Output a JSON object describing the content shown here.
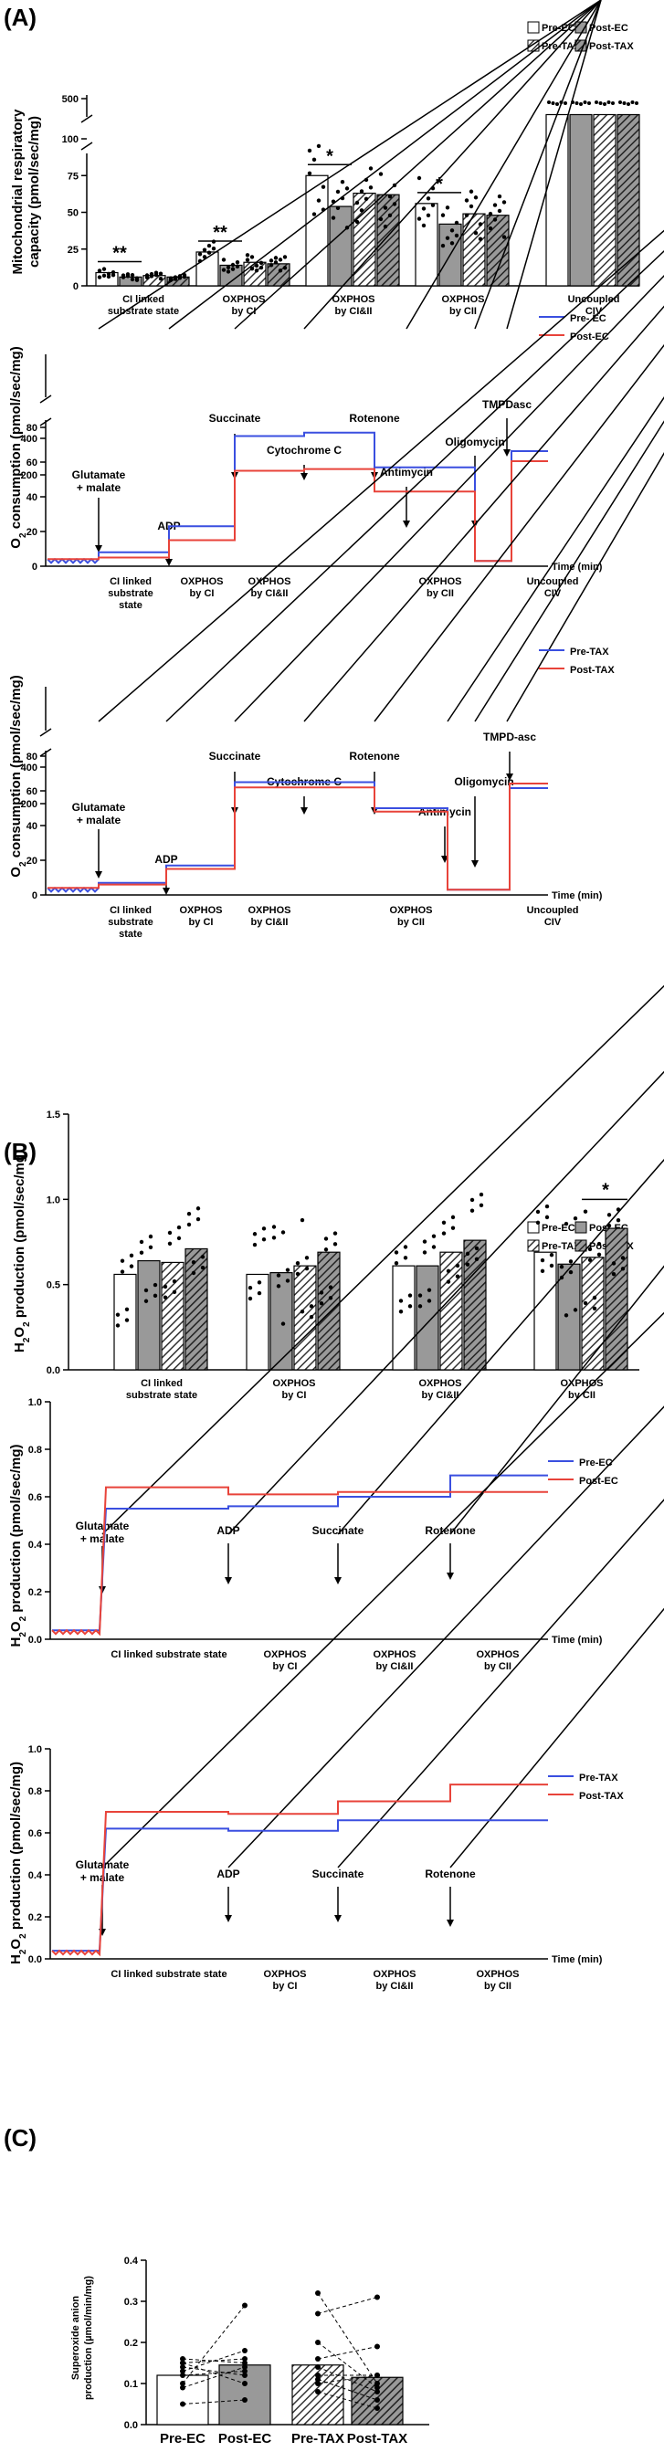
{
  "panels": {
    "a": "(A)",
    "b": "(B)",
    "c": "(C)"
  },
  "chart_data": [
    {
      "id": "a1",
      "type": "bar",
      "ylabel_lines": [
        "Mitochondrial respiratory",
        "capacity (pmol/sec/mg)"
      ],
      "yticks": [
        "0",
        "25",
        "50",
        "75",
        "100",
        "500"
      ],
      "legend": [
        "Pre-EC",
        "Post-EC",
        "Pre-TAX",
        "Post-TAX"
      ],
      "categories": [
        [
          "CI linked",
          "substrate state"
        ],
        [
          "OXPHOS",
          "by CI"
        ],
        [
          "OXPHOS",
          "by CI&II"
        ],
        [
          "OXPHOS",
          "by CII"
        ],
        [
          "Uncoupled",
          "CIV"
        ]
      ],
      "series": [
        {
          "name": "Pre-EC",
          "values": [
            9,
            23,
            75,
            56,
            450
          ]
        },
        {
          "name": "Post-EC",
          "values": [
            6,
            14,
            54,
            42,
            450
          ]
        },
        {
          "name": "Pre-TAX",
          "values": [
            7,
            16,
            63,
            49,
            450
          ]
        },
        {
          "name": "Post-TAX",
          "values": [
            6,
            15,
            62,
            48,
            450
          ]
        }
      ],
      "significance": [
        "**",
        "**",
        "*",
        "*"
      ]
    },
    {
      "id": "a2",
      "type": "line",
      "ylabel": "O2 consumption (pmol/sec/mg)",
      "yticks": [
        "0",
        "20",
        "40",
        "60",
        "80",
        "200",
        "400"
      ],
      "xlabel": "Time (min)",
      "legend": [
        "Pre- EC",
        "Post-EC"
      ],
      "colors": [
        "#3a4fe0",
        "#e8433a"
      ],
      "events": [
        [
          "Glutamate",
          "+ malate"
        ],
        [
          "ADP"
        ],
        [
          "Succinate"
        ],
        [
          "Cytochrome C"
        ],
        [
          "Rotenone"
        ],
        [
          "Antimycin"
        ],
        [
          "Oligomycin"
        ],
        [
          "TMPDasc"
        ]
      ],
      "states": [
        [
          "CI linked",
          "substrate",
          "state"
        ],
        [
          "OXPHOS",
          "by CI"
        ],
        [
          "OXPHOS",
          "by CI&II"
        ],
        [
          "OXPHOS",
          "by CII"
        ],
        [
          "Uncoupled",
          "CIV"
        ]
      ],
      "series": [
        {
          "name": "Pre- EC",
          "levels": [
            8,
            23,
            75,
            77,
            57,
            3,
            3,
            330
          ]
        },
        {
          "name": "Post-EC",
          "levels": [
            5,
            15,
            55,
            56,
            43,
            3,
            3,
            275
          ]
        }
      ]
    },
    {
      "id": "a3",
      "type": "line",
      "ylabel": "O2 consumption (pmol/sec/mg)",
      "yticks": [
        "0",
        "20",
        "40",
        "60",
        "80",
        "200",
        "400"
      ],
      "xlabel": "Time (min)",
      "legend": [
        "Pre-TAX",
        "Post-TAX"
      ],
      "colors": [
        "#3a4fe0",
        "#e8433a"
      ],
      "events": [
        [
          "Glutamate",
          "+ malate"
        ],
        [
          "ADP"
        ],
        [
          "Succinate"
        ],
        [
          "Cytochrome C"
        ],
        [
          "Rotenone"
        ],
        [
          "Antimycin"
        ],
        [
          "Oligomycin"
        ],
        [
          "TMPD-asc"
        ]
      ],
      "states": [
        [
          "CI linked",
          "substrate",
          "state"
        ],
        [
          "OXPHOS",
          "by CI"
        ],
        [
          "OXPHOS",
          "by CI&II"
        ],
        [
          "OXPHOS",
          "by CII"
        ],
        [
          "Uncoupled",
          "CIV"
        ]
      ],
      "series": [
        {
          "name": "Pre-TAX",
          "levels": [
            7,
            17,
            65,
            65,
            50,
            3,
            3,
            285
          ]
        },
        {
          "name": "Post-TAX",
          "levels": [
            6,
            15,
            62,
            62,
            48,
            3,
            3,
            310
          ]
        }
      ]
    },
    {
      "id": "b1",
      "type": "bar",
      "ylabel": "H2O2 production (pmol/sec/mg)",
      "yticks": [
        "0.0",
        "0.5",
        "1.0",
        "1.5"
      ],
      "legend": [
        "Pre-EC",
        "Post-EC",
        "Pre-TAX",
        "Post-TAX"
      ],
      "categories": [
        [
          "CI linked",
          "substrate state"
        ],
        [
          "OXPHOS",
          "by CI"
        ],
        [
          "OXPHOS",
          "by CI&II"
        ],
        [
          "OXPHOS",
          "by CII"
        ]
      ],
      "series": [
        {
          "name": "Pre-EC",
          "values": [
            0.56,
            0.56,
            0.61,
            0.69
          ]
        },
        {
          "name": "Post-EC",
          "values": [
            0.64,
            0.57,
            0.61,
            0.62
          ]
        },
        {
          "name": "Pre-TAX",
          "values": [
            0.63,
            0.61,
            0.69,
            0.66
          ]
        },
        {
          "name": "Post-TAX",
          "values": [
            0.71,
            0.69,
            0.76,
            0.83
          ]
        }
      ],
      "significance": [
        "*"
      ]
    },
    {
      "id": "b2",
      "type": "line",
      "ylabel": "H2O2 production (pmol/sec/mg)",
      "yticks": [
        "0.0",
        "0.2",
        "0.4",
        "0.6",
        "0.8",
        "1.0"
      ],
      "xlabel": "Time (min)",
      "legend": [
        "Pre-EC",
        "Post-EC"
      ],
      "colors": [
        "#3a4fe0",
        "#e8433a"
      ],
      "events": [
        [
          "Glutamate",
          "+ malate"
        ],
        [
          "ADP"
        ],
        [
          "Succinate"
        ],
        [
          "Rotenone"
        ]
      ],
      "states": [
        [
          "CI linked substrate state"
        ],
        [
          "OXPHOS",
          "by CI"
        ],
        [
          "OXPHOS",
          "by CI&II"
        ],
        [
          "OXPHOS",
          "by CII"
        ]
      ],
      "series": [
        {
          "name": "Pre-EC",
          "levels": [
            0.55,
            0.56,
            0.6,
            0.69
          ]
        },
        {
          "name": "Post-EC",
          "levels": [
            0.64,
            0.61,
            0.62,
            0.62
          ]
        }
      ]
    },
    {
      "id": "b3",
      "type": "line",
      "ylabel": "H2O2 production (pmol/sec/mg)",
      "yticks": [
        "0.0",
        "0.2",
        "0.4",
        "0.6",
        "0.8",
        "1.0"
      ],
      "xlabel": "Time (min)",
      "legend": [
        "Pre-TAX",
        "Post-TAX"
      ],
      "colors": [
        "#3a4fe0",
        "#e8433a"
      ],
      "events": [
        [
          "Glutamate",
          "+ malate"
        ],
        [
          "ADP"
        ],
        [
          "Succinate"
        ],
        [
          "Rotenone"
        ]
      ],
      "states": [
        [
          "CI linked substrate state"
        ],
        [
          "OXPHOS",
          "by CI"
        ],
        [
          "OXPHOS",
          "by CI&II"
        ],
        [
          "OXPHOS",
          "by CII"
        ]
      ],
      "series": [
        {
          "name": "Pre-TAX",
          "levels": [
            0.62,
            0.61,
            0.66,
            0.66
          ]
        },
        {
          "name": "Post-TAX",
          "levels": [
            0.7,
            0.69,
            0.75,
            0.83
          ]
        }
      ]
    },
    {
      "id": "c1",
      "type": "bar",
      "ylabel_lines": [
        "Superoxide anion",
        "production (µmol/min/mg)"
      ],
      "yticks": [
        "0.0",
        "0.1",
        "0.2",
        "0.3",
        "0.4"
      ],
      "categories": [
        "Pre-EC",
        "Post-EC",
        "Pre-TAX",
        "Post-TAX"
      ],
      "values": [
        0.12,
        0.145,
        0.145,
        0.115
      ]
    }
  ]
}
